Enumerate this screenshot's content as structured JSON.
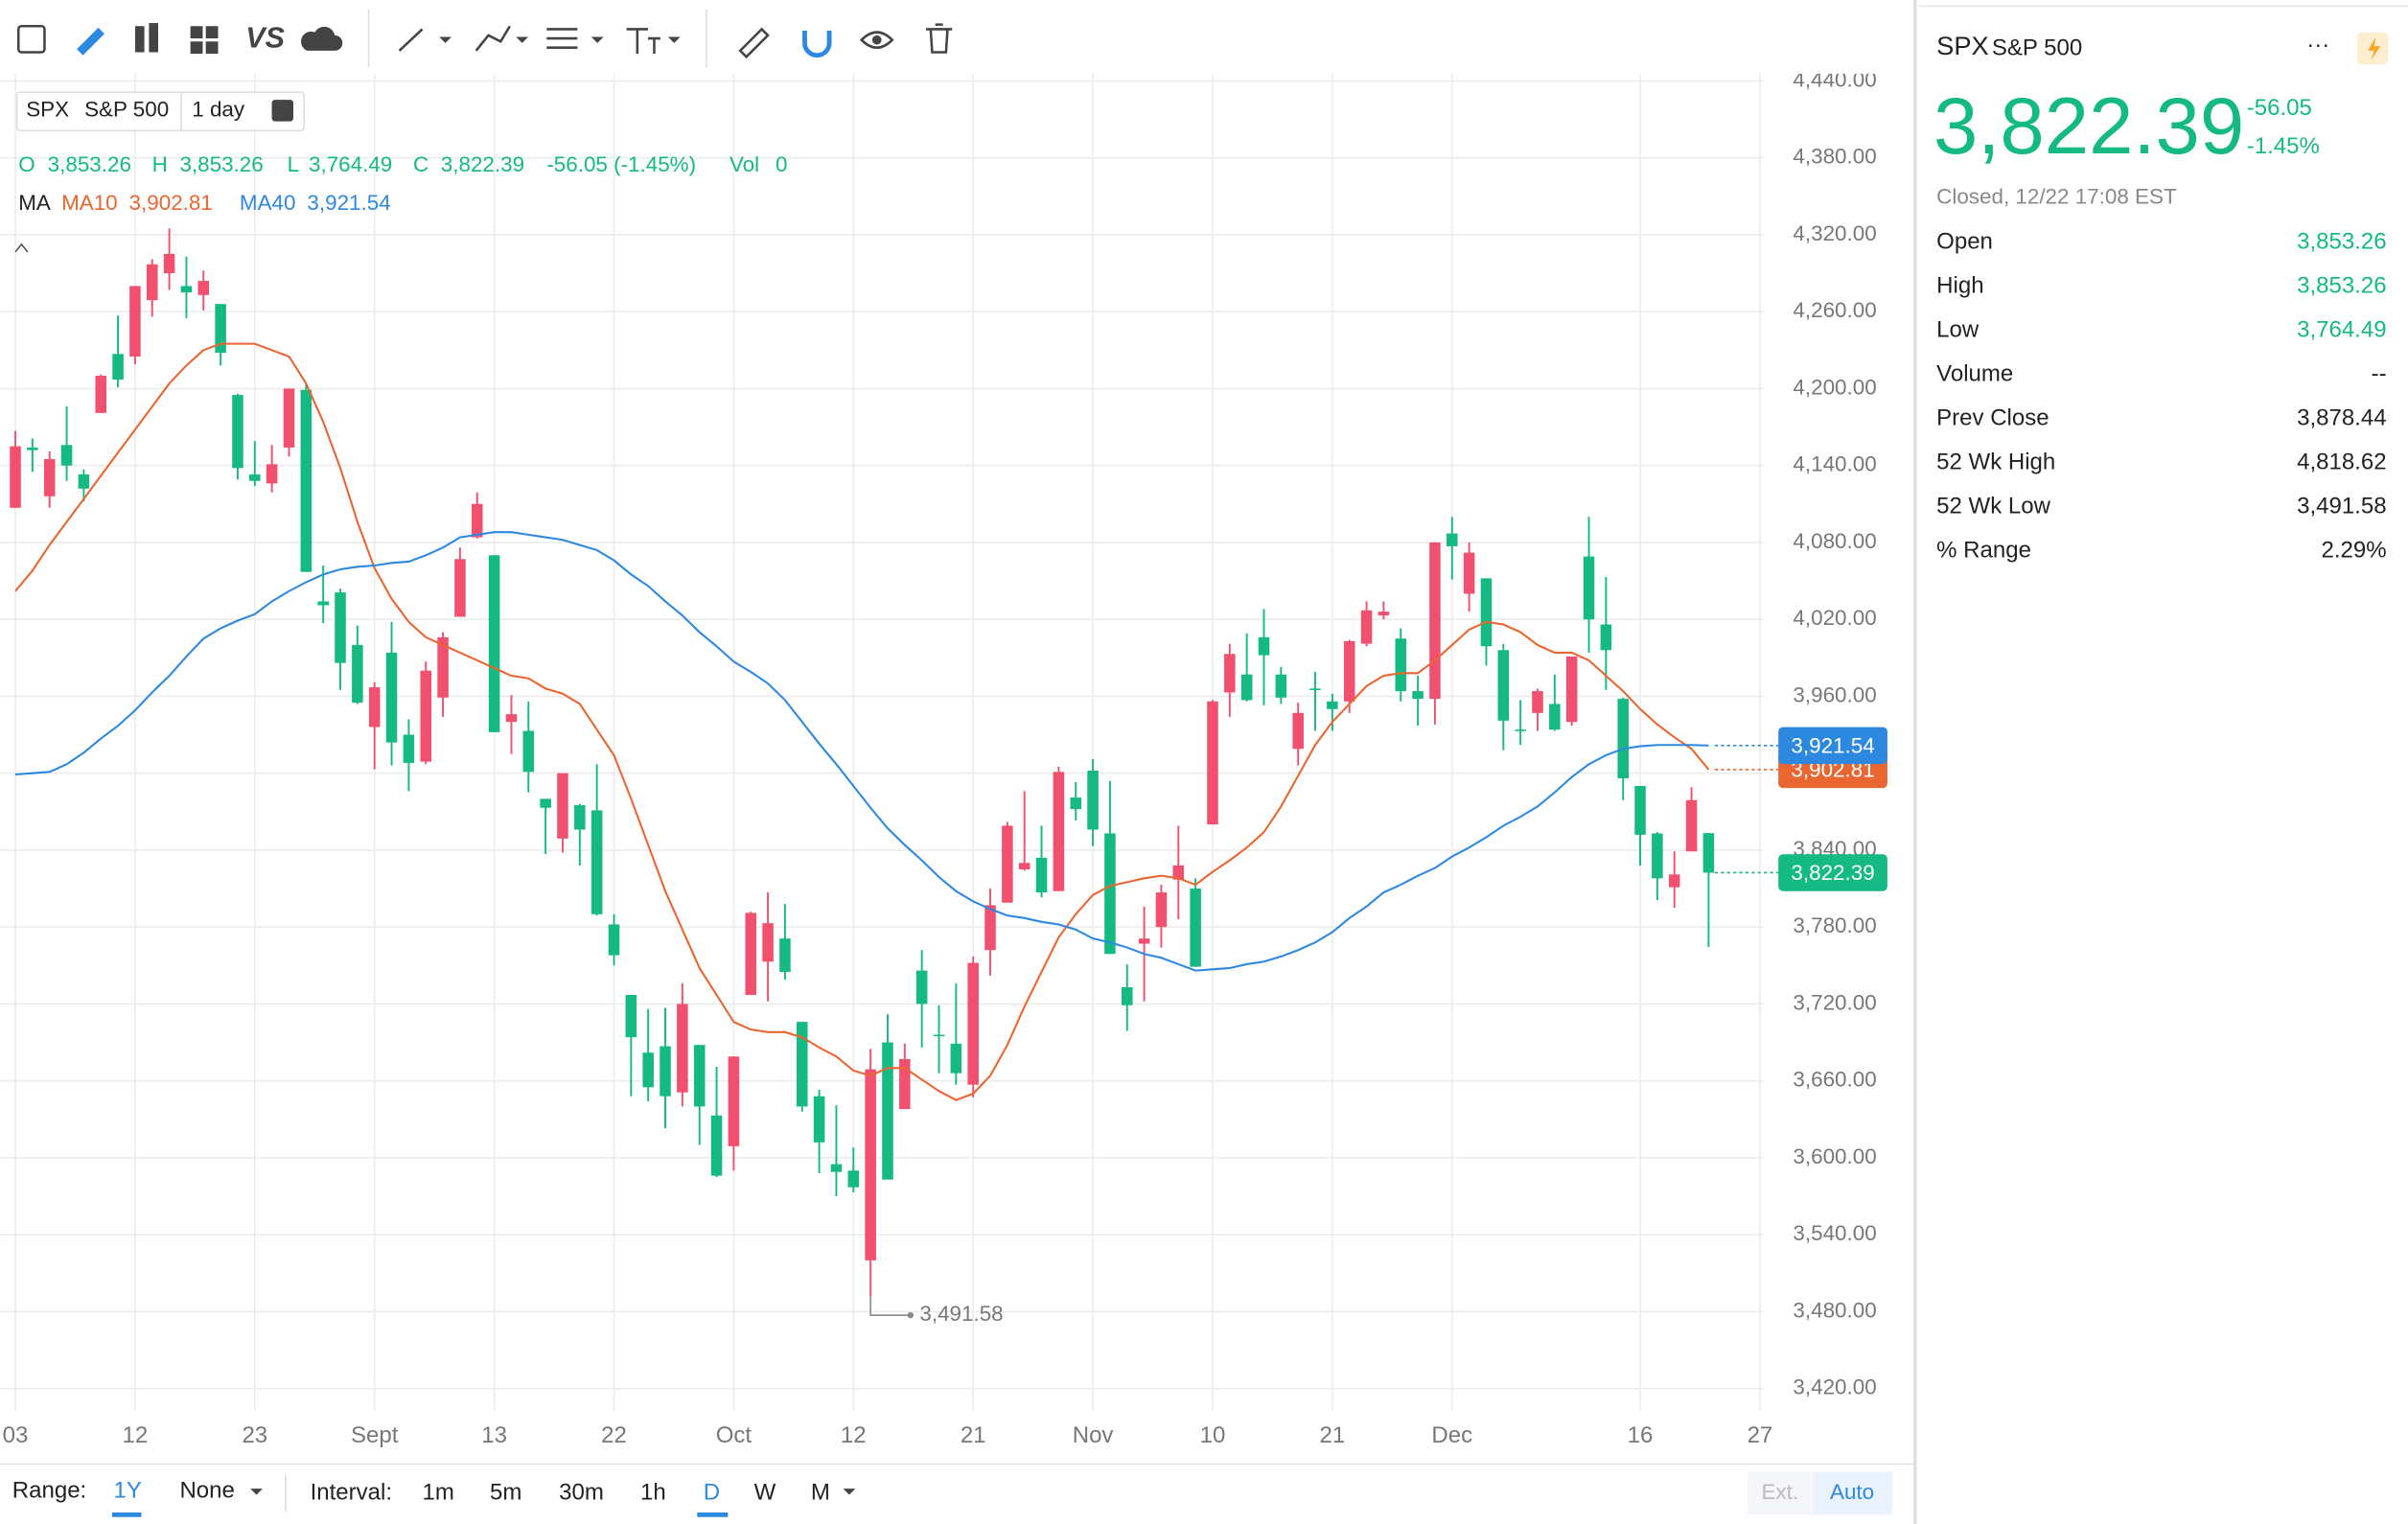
{
  "toolbar": {
    "vs": "VS"
  },
  "chart_data": {
    "type": "candlestick",
    "symbol": "SPX",
    "name": "S&P 500",
    "period": "1 day",
    "info": {
      "o": "O",
      "o_val": "3,853.26",
      "h": "H",
      "h_val": "3,853.26",
      "l": "L",
      "l_val": "3,764.49",
      "c": "C",
      "c_val": "3,822.39",
      "chg": "-56.05 (-1.45%)",
      "vol": "Vol",
      "vol_val": "0",
      "ma": "MA"
    },
    "categories": [
      "03",
      null,
      null,
      null,
      null,
      null,
      null,
      "12",
      null,
      null,
      null,
      null,
      null,
      null,
      "23",
      null,
      null,
      null,
      null,
      null,
      null,
      "Sept",
      null,
      null,
      null,
      null,
      null,
      null,
      "13",
      null,
      null,
      null,
      null,
      null,
      null,
      "22",
      null,
      null,
      null,
      null,
      null,
      null,
      "Oct",
      null,
      null,
      null,
      null,
      null,
      null,
      "12",
      null,
      null,
      null,
      null,
      null,
      null,
      "21",
      null,
      null,
      null,
      null,
      null,
      null,
      "Nov",
      null,
      null,
      null,
      null,
      null,
      null,
      "10",
      null,
      null,
      null,
      null,
      null,
      null,
      "21",
      null,
      null,
      null,
      null,
      null,
      null,
      "Dec",
      null,
      null,
      null,
      null,
      null,
      null,
      null,
      null,
      null,
      null,
      "16",
      null,
      null,
      null,
      null,
      null,
      null,
      "27"
    ],
    "candles": {
      "open": [
        4107,
        4154,
        4116,
        4156,
        4133,
        4181,
        4227,
        4225,
        4269,
        4290,
        4280,
        4273,
        4266,
        4195,
        4133,
        4126,
        4154,
        4199,
        4034,
        4041,
        4000,
        3936,
        3994,
        3930,
        3909,
        3959,
        4022,
        4084,
        4070,
        3940,
        3933,
        3880,
        3849,
        3875,
        3871,
        3782,
        3727,
        3682,
        3687,
        3651,
        3688,
        3633,
        3609,
        3727,
        3753,
        3771,
        3706,
        3648,
        3595,
        3590,
        3520,
        3690,
        3638,
        3746,
        3696,
        3689,
        3657,
        3762,
        3799,
        3825,
        3834,
        3808,
        3881,
        3902,
        3853,
        3733,
        3767,
        3780,
        3817,
        3810,
        3860,
        3963,
        3977,
        4006,
        3977,
        3919,
        3966,
        3956,
        3956,
        4001,
        4023,
        4005,
        3964,
        3958,
        4087,
        4040,
        4052,
        3996,
        3934,
        3947,
        3954,
        3940,
        4069,
        4016,
        3958,
        3890,
        3853,
        3811,
        3839,
        3853.26,
        null,
        null,
        null
      ],
      "high": [
        4167,
        4161,
        4151,
        4186,
        4137,
        4211,
        4257,
        4280,
        4301,
        4325,
        4303,
        4292,
        4266,
        4196,
        4159,
        4156,
        4200,
        4204,
        4062,
        4044,
        4015,
        3971,
        4018,
        3942,
        3987,
        4010,
        4076,
        4119,
        4070,
        3961,
        3956,
        3880,
        3900,
        3876,
        3907,
        3790,
        3727,
        3716,
        3717,
        3736,
        3688,
        3671,
        3679,
        3792,
        3807,
        3798,
        3706,
        3653,
        3641,
        3608,
        3685,
        3712,
        3689,
        3762,
        3719,
        3736,
        3757,
        3810,
        3862,
        3886,
        3859,
        3905,
        3893,
        3911,
        3894,
        3751,
        3796,
        3813,
        3859,
        3818,
        3957,
        4001,
        4009,
        4028,
        3983,
        3955,
        3979,
        3962,
        4004,
        4034,
        4034,
        4013,
        3976,
        4080,
        4100,
        4080,
        4052,
        4001,
        3957,
        3966,
        3977,
        3991,
        4100,
        4053,
        3959,
        3890,
        3854,
        3839,
        3889,
        3853.26,
        null,
        null,
        null
      ],
      "low": [
        4107,
        4135,
        4107,
        4128,
        4112,
        4181,
        4201,
        4219,
        4256,
        4277,
        4255,
        4261,
        4218,
        4129,
        4124,
        4119,
        4147,
        4057,
        4017,
        3965,
        3954,
        3903,
        3906,
        3886,
        3907,
        3944,
        4022,
        4083,
        3933,
        3915,
        3885,
        3837,
        3838,
        3828,
        3789,
        3750,
        3648,
        3644,
        3623,
        3640,
        3610,
        3585,
        3590,
        3727,
        3722,
        3739,
        3636,
        3588,
        3570,
        3573,
        3491.58,
        3584,
        3638,
        3686,
        3666,
        3657,
        3647,
        3742,
        3799,
        3824,
        3803,
        3808,
        3863,
        3843,
        3759,
        3699,
        3722,
        3764,
        3786,
        3749,
        3860,
        3944,
        3956,
        3953,
        3954,
        3906,
        3933,
        3933,
        3947,
        3999,
        4020,
        3956,
        3937,
        3938,
        4051,
        4026,
        3984,
        3918,
        3922,
        3933,
        3933,
        3937,
        3994,
        3965,
        3879,
        3828,
        3801,
        3795,
        3839,
        3764.49,
        null,
        null,
        null
      ],
      "close": [
        4155,
        4152,
        4145,
        4140,
        4122,
        4210,
        4207,
        4280,
        4297,
        4305,
        4275,
        4284,
        4228,
        4138,
        4128,
        4141,
        4200,
        4057,
        4031,
        3986,
        3955,
        3967,
        3924,
        3908,
        3980,
        4006,
        4067,
        4110,
        3932,
        3946,
        3901,
        3873,
        3900,
        3856,
        3790,
        3758,
        3694,
        3655,
        3648,
        3720,
        3640,
        3586,
        3679,
        3791,
        3783,
        3745,
        3640,
        3612,
        3589,
        3577,
        3669,
        3583,
        3677,
        3720,
        3695,
        3666,
        3752,
        3797,
        3859,
        3830,
        3807,
        3901,
        3872,
        3856,
        3759,
        3719,
        3771,
        3807,
        3828,
        3749,
        3956,
        3993,
        3957,
        3992,
        3959,
        3947,
        3965,
        3950,
        4003,
        4027,
        4026,
        3964,
        3958,
        4080,
        4077,
        4072,
        3999,
        3941,
        3933,
        3964,
        3934,
        3991,
        4020,
        3996,
        3896,
        3852,
        3818,
        3821,
        3879,
        3822.39,
        null,
        null,
        null
      ]
    },
    "up_color": "#f2506f",
    "down_color": "#14b983",
    "last_label": "3,822.39",
    "series": [
      {
        "name": "MA10",
        "color": "#ea6630",
        "last_label": "3,902.81",
        "values": [
          4042,
          4058,
          4078,
          4096,
          4114,
          4132,
          4150,
          4168,
          4186,
          4204,
          4218,
          4230,
          4235,
          4235,
          4235,
          4230,
          4225,
          4204,
          4174,
          4138,
          4096,
          4060,
          4036,
          4018,
          4006,
          4000,
          3994,
          3988,
          3982,
          3976,
          3974,
          3966,
          3962,
          3954,
          3934,
          3914,
          3880,
          3844,
          3808,
          3778,
          3748,
          3727,
          3706,
          3700,
          3698,
          3698,
          3694,
          3686,
          3679,
          3668,
          3664,
          3670,
          3670,
          3661,
          3652,
          3645,
          3650,
          3664,
          3688,
          3718,
          3745,
          3772,
          3790,
          3805,
          3812,
          3815,
          3818,
          3820,
          3818,
          3813,
          3823,
          3832,
          3842,
          3854,
          3874,
          3898,
          3922,
          3940,
          3954,
          3968,
          3976,
          3978,
          3978,
          3988,
          4000,
          4012,
          4018,
          4016,
          4010,
          4000,
          3994,
          3994,
          3988,
          3976,
          3964,
          3950,
          3938,
          3928,
          3919,
          3902.81,
          null,
          null,
          null
        ]
      },
      {
        "name": "MA40",
        "color": "#2d89e0",
        "last_label": "3,921.54",
        "values": [
          3899,
          3900,
          3901,
          3907,
          3916,
          3927,
          3937,
          3949,
          3963,
          3976,
          3991,
          4005,
          4013,
          4019,
          4024,
          4034,
          4042,
          4049,
          4055,
          4059,
          4061,
          4062,
          4064,
          4065,
          4070,
          4076,
          4084,
          4086,
          4088,
          4088,
          4086,
          4084,
          4082,
          4078,
          4074,
          4066,
          4055,
          4046,
          4034,
          4023,
          4010,
          3999,
          3987,
          3979,
          3970,
          3957,
          3940,
          3923,
          3907,
          3890,
          3873,
          3857,
          3844,
          3832,
          3819,
          3808,
          3800,
          3794,
          3789,
          3787,
          3784,
          3782,
          3778,
          3771,
          3768,
          3764,
          3759,
          3756,
          3751,
          3746,
          3747,
          3748,
          3751,
          3753,
          3757,
          3762,
          3768,
          3776,
          3787,
          3796,
          3807,
          3813,
          3820,
          3826,
          3835,
          3842,
          3850,
          3859,
          3866,
          3874,
          3885,
          3897,
          3907,
          3914,
          3919,
          3921,
          3922,
          3922,
          3922,
          3921.54,
          null,
          null,
          null
        ]
      }
    ],
    "low_annotation": "3,491.58",
    "ylim": [
      3403,
      4448
    ],
    "yticks": [
      {
        "value": 3420,
        "label": "3,420.00"
      },
      {
        "value": 3480,
        "label": "3,480.00"
      },
      {
        "value": 3540,
        "label": "3,540.00"
      },
      {
        "value": 3600,
        "label": "3,600.00"
      },
      {
        "value": 3660,
        "label": "3,660.00"
      },
      {
        "value": 3720,
        "label": "3,720.00"
      },
      {
        "value": 3780,
        "label": "3,780.00"
      },
      {
        "value": 3840,
        "label": "3,840.00"
      },
      {
        "value": 3900,
        "label": "3,900.00"
      },
      {
        "value": 3960,
        "label": "3,960.00"
      },
      {
        "value": 4020,
        "label": "4,020.00"
      },
      {
        "value": 4080,
        "label": "4,080.00"
      },
      {
        "value": 4140,
        "label": "4,140.00"
      },
      {
        "value": 4200,
        "label": "4,200.00"
      },
      {
        "value": 4260,
        "label": "4,260.00"
      },
      {
        "value": 4320,
        "label": "4,320.00"
      },
      {
        "value": 4380,
        "label": "4,380.00"
      },
      {
        "value": 4440,
        "label": "4,440.00"
      }
    ],
    "grid": true
  },
  "quote": {
    "symbol": "SPX",
    "name": "S&P 500",
    "price": "3,822.39",
    "change": "-56.05",
    "change_pct": "-1.45%",
    "status": "Closed, 12/22 17:08 EST",
    "more": "···",
    "stats": [
      {
        "label": "Open",
        "value": "3,853.26",
        "color": "#14b983"
      },
      {
        "label": "High",
        "value": "3,853.26",
        "color": "#14b983"
      },
      {
        "label": "Low",
        "value": "3,764.49",
        "color": "#14b983"
      },
      {
        "label": "Volume",
        "value": "--"
      },
      {
        "label": "Prev Close",
        "value": "3,878.44"
      },
      {
        "label": "52 Wk High",
        "value": "4,818.62"
      },
      {
        "label": "52 Wk Low",
        "value": "3,491.58"
      },
      {
        "label": "% Range",
        "value": "2.29%"
      }
    ]
  },
  "footer": {
    "range_label": "Range:",
    "range": "1Y",
    "compare": "None",
    "interval_label": "Interval:",
    "intervals": [
      "1m",
      "5m",
      "30m",
      "1h",
      "D",
      "W",
      "M"
    ],
    "ext": "Ext.",
    "auto": "Auto"
  }
}
